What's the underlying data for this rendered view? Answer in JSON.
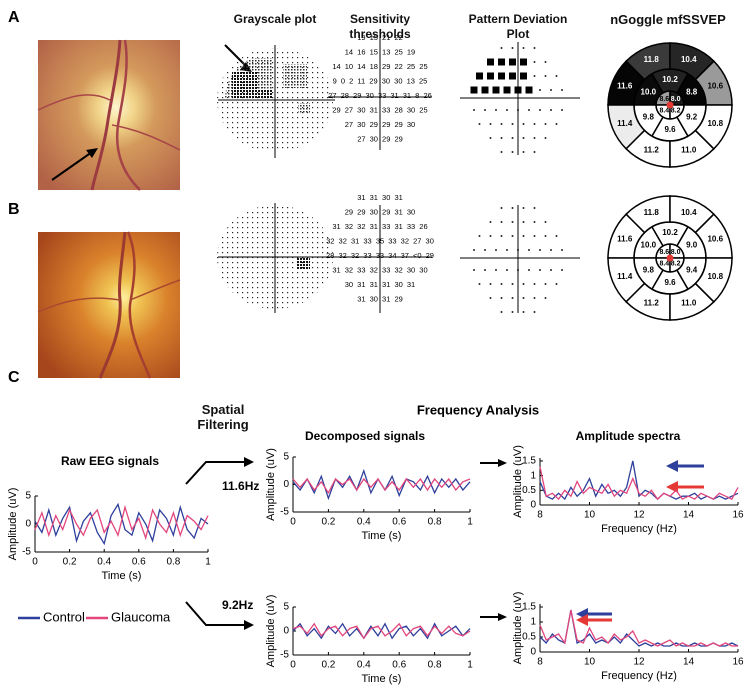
{
  "panels": [
    "A",
    "B",
    "C"
  ],
  "headers": [
    "Grayscale plot",
    "Sensitivity thresholds",
    "Pattern Deviation Plot",
    "nGoggle mfSSVEP"
  ],
  "thresholds": [
    [
      "19 15 21 22",
      "14 16 15 13 25 19",
      "14 10 14 18 29 22 25 25",
      "9 0 2 11 29 30 30 13 25",
      "27 28 29 30 33 31 31 8 26",
      "29 27 30 31 33 28 30 25",
      "27 30 29 29 29 30",
      "27 30 29 29"
    ],
    [
      "31 31 30 31",
      "29 29 30 29 31 30",
      "31 32 32 31 33 31 33 26",
      "32 32 31 33 35 33 32 27 30",
      "28 32 32 33 33 34 37 <0 29",
      "31 32 33 32 33 32 30 30",
      "30 31 31 31 30 31",
      "31 30 31 29"
    ]
  ],
  "mfssvep": [
    {
      "inner": {
        "labels": [
          "8.6",
          "8.0",
          "8.4",
          "8.2"
        ],
        "colors": [
          "#a0a0a0",
          "#1a1a1a",
          "#ffffff",
          "#ffffff"
        ]
      },
      "middle": {
        "labels": [
          "10.0",
          "10.2",
          "8.8",
          "9.8",
          "9.6",
          "9.2"
        ],
        "colors": [
          "#0a0a0a",
          "#222222",
          "#050505",
          "#ffffff",
          "#ffffff",
          "#ffffff"
        ]
      },
      "outer": {
        "labels": [
          "11.6",
          "11.8",
          "10.4",
          "10.6",
          "11.4",
          "11.2",
          "11.0",
          "10.8"
        ],
        "colors": [
          "#050505",
          "#3a3a3a",
          "#262626",
          "#9a9a9a",
          "#ececec",
          "#ffffff",
          "#ffffff",
          "#ffffff"
        ]
      }
    },
    {
      "inner": {
        "labels": [
          "8.6",
          "8.0",
          "8.4",
          "8.2"
        ],
        "colors": [
          "#ffffff",
          "#ffffff",
          "#ffffff",
          "#ffffff"
        ]
      },
      "middle": {
        "labels": [
          "10.0",
          "10.2",
          "9.0",
          "9.8",
          "9.6",
          "9.4"
        ],
        "colors": [
          "#ffffff",
          "#ffffff",
          "#ffffff",
          "#ffffff",
          "#ffffff",
          "#ffffff"
        ]
      },
      "outer": {
        "labels": [
          "11.6",
          "11.8",
          "10.4",
          "10.6",
          "11.4",
          "11.2",
          "11.0",
          "10.8"
        ],
        "colors": [
          "#ffffff",
          "#ffffff",
          "#ffffff",
          "#ffffff",
          "#ffffff",
          "#ffffff",
          "#ffffff",
          "#ffffff"
        ]
      }
    }
  ],
  "pipeline": {
    "spatial_filtering": "Spatial Filtering",
    "frequency_analysis": "Frequency Analysis",
    "bands": [
      "11.6Hz",
      "9.2Hz"
    ]
  },
  "chart_data": [
    {
      "type": "line",
      "title": "Raw EEG signals",
      "xlabel": "Time (s)",
      "ylabel": "Amplitude (uV)",
      "xlim": [
        0,
        1
      ],
      "ylim": [
        -5,
        5
      ],
      "xticks": [
        0,
        0.2,
        0.4,
        0.6,
        0.8,
        1
      ],
      "yticks": [
        -5,
        0,
        5
      ],
      "x": [
        0,
        0.04,
        0.08,
        0.12,
        0.16,
        0.2,
        0.24,
        0.28,
        0.32,
        0.36,
        0.4,
        0.44,
        0.48,
        0.52,
        0.56,
        0.6,
        0.64,
        0.68,
        0.72,
        0.76,
        0.8,
        0.84,
        0.88,
        0.92,
        0.96,
        1
      ],
      "series": [
        {
          "name": "Control",
          "color": "#2e3f9c",
          "values": [
            0.5,
            -1.5,
            2.5,
            -2,
            1,
            3,
            -3,
            0.5,
            2,
            -1.5,
            -3.5,
            1.5,
            3.5,
            -1,
            -2,
            2,
            0,
            -3,
            2.5,
            1,
            -2,
            3,
            -1,
            -2.5,
            1,
            0
          ]
        },
        {
          "name": "Glaucoma",
          "color": "#e2467d",
          "values": [
            -1,
            2,
            -2,
            1.5,
            -1,
            2.5,
            0,
            -2,
            1,
            2.5,
            -1.5,
            0.5,
            -2,
            3,
            -1,
            1,
            -2.5,
            2.5,
            0,
            -1.5,
            2,
            -2,
            1.5,
            0.5,
            -1,
            1.5
          ]
        }
      ]
    },
    {
      "type": "line",
      "title": "Decomposed signals",
      "xlabel": "Time (s)",
      "ylabel": "Amplitude (uV)",
      "xlim": [
        0,
        1
      ],
      "ylim": [
        -5,
        5
      ],
      "xticks": [
        0,
        0.2,
        0.4,
        0.6,
        0.8,
        1
      ],
      "yticks": [
        -5,
        0,
        5
      ],
      "x": [
        0,
        0.04,
        0.08,
        0.12,
        0.16,
        0.2,
        0.24,
        0.28,
        0.32,
        0.36,
        0.4,
        0.44,
        0.48,
        0.52,
        0.56,
        0.6,
        0.64,
        0.68,
        0.72,
        0.76,
        0.8,
        0.84,
        0.88,
        0.92,
        0.96,
        1
      ],
      "series": [
        {
          "color": "#2e3f9c",
          "values": [
            0.5,
            -1,
            1,
            -1.5,
            1.5,
            -2.5,
            1,
            -0.5,
            1.5,
            -1,
            2.5,
            -1.5,
            1,
            -1,
            1.5,
            -2,
            1,
            0.5,
            -1,
            1.5,
            -1.5,
            1,
            -0.5,
            1,
            -1,
            0.5
          ]
        },
        {
          "color": "#e2467d",
          "values": [
            1,
            -0.5,
            1,
            -1,
            0.5,
            -1.5,
            1,
            0,
            1,
            -1,
            1,
            -0.5,
            1,
            -1,
            0.5,
            -1,
            1,
            -0.5,
            1,
            -1,
            1,
            -0.5,
            1,
            -1,
            0.5,
            1
          ]
        }
      ]
    },
    {
      "type": "line",
      "title": "Amplitude spectra",
      "xlabel": "Frequency (Hz)",
      "ylabel": "Amplitude (uV)",
      "xlim": [
        8,
        16
      ],
      "ylim": [
        0,
        1.6
      ],
      "xticks": [
        8,
        10,
        12,
        14,
        16
      ],
      "yticks": [
        0,
        0.5,
        1,
        1.5
      ],
      "x": [
        8,
        8.25,
        8.5,
        8.75,
        9,
        9.25,
        9.5,
        9.75,
        10,
        10.25,
        10.5,
        10.75,
        11,
        11.25,
        11.5,
        11.75,
        12,
        12.25,
        12.5,
        12.75,
        13,
        13.25,
        13.5,
        13.75,
        14,
        14.25,
        14.5,
        14.75,
        15,
        15.25,
        15.5,
        15.75,
        16
      ],
      "series": [
        {
          "color": "#2e3f9c",
          "values": [
            0.8,
            0.3,
            0.2,
            0.4,
            0.2,
            0.6,
            0.3,
            0.5,
            0.9,
            0.3,
            0.7,
            0.4,
            0.5,
            0.3,
            0.6,
            1.5,
            0.3,
            0.5,
            0.4,
            0.2,
            0.4,
            0.3,
            0.2,
            0.3,
            0.3,
            0.4,
            0.2,
            0.3,
            0.2,
            0.3,
            0.2,
            0.3,
            0.4
          ]
        },
        {
          "color": "#e2467d",
          "values": [
            1.3,
            0.3,
            0.4,
            0.2,
            0.5,
            0.3,
            0.8,
            0.4,
            0.6,
            0.5,
            0.4,
            0.7,
            0.3,
            0.5,
            0.4,
            0.9,
            0.4,
            0.3,
            0.5,
            0.2,
            0.4,
            0.3,
            0.5,
            0.2,
            0.3,
            0.2,
            0.4,
            0.3,
            0.2,
            0.4,
            0.3,
            0.2,
            0.6
          ]
        }
      ]
    },
    {
      "type": "line",
      "xlabel": "Time (s)",
      "ylabel": "Amplitude (uV)",
      "xlim": [
        0,
        1
      ],
      "ylim": [
        -5,
        5
      ],
      "xticks": [
        0,
        0.2,
        0.4,
        0.6,
        0.8,
        1
      ],
      "yticks": [
        -5,
        0,
        5
      ],
      "x": [
        0,
        0.04,
        0.08,
        0.12,
        0.16,
        0.2,
        0.24,
        0.28,
        0.32,
        0.36,
        0.4,
        0.44,
        0.48,
        0.52,
        0.56,
        0.6,
        0.64,
        0.68,
        0.72,
        0.76,
        0.8,
        0.84,
        0.88,
        0.92,
        0.96,
        1
      ],
      "series": [
        {
          "color": "#2e3f9c",
          "values": [
            0,
            1.5,
            -1,
            0.5,
            -1.5,
            1,
            -0.5,
            1.5,
            -1,
            0.5,
            -1.5,
            1,
            -1,
            1.5,
            -1.5,
            0.5,
            1,
            -1,
            0.5,
            -1.5,
            1.5,
            -1,
            0,
            1,
            -1,
            0.5
          ]
        },
        {
          "color": "#e2467d",
          "values": [
            0.5,
            1,
            -0.5,
            1.5,
            -1,
            0.5,
            1,
            -1,
            0.5,
            1,
            -1.5,
            0.5,
            1,
            -1,
            0,
            1.5,
            -1,
            0.5,
            1,
            -1,
            1,
            -0.5,
            1,
            -0.5,
            -1,
            0
          ]
        }
      ]
    },
    {
      "type": "line",
      "xlabel": "Frequency (Hz)",
      "ylabel": "Amplitude (uV)",
      "xlim": [
        8,
        16
      ],
      "ylim": [
        0,
        1.6
      ],
      "xticks": [
        8,
        10,
        12,
        14,
        16
      ],
      "yticks": [
        0,
        0.5,
        1,
        1.5
      ],
      "x": [
        8,
        8.25,
        8.5,
        8.75,
        9,
        9.25,
        9.5,
        9.75,
        10,
        10.25,
        10.5,
        10.75,
        11,
        11.25,
        11.5,
        11.75,
        12,
        12.25,
        12.5,
        12.75,
        13,
        13.25,
        13.5,
        13.75,
        14,
        14.25,
        14.5,
        14.75,
        15,
        15.25,
        15.5,
        15.75,
        16
      ],
      "series": [
        {
          "color": "#2e3f9c",
          "values": [
            0.5,
            0.3,
            0.6,
            0.4,
            0.3,
            1.4,
            0.3,
            0.4,
            0.6,
            0.3,
            0.4,
            0.3,
            0.5,
            0.3,
            0.6,
            0.4,
            0.2,
            0.3,
            0.2,
            0.3,
            0.2,
            0.2,
            0.3,
            0.2,
            0.2,
            0.3,
            0.2,
            0.2,
            0.3,
            0.2,
            0.2,
            0.3,
            0.2
          ]
        },
        {
          "color": "#e2467d",
          "values": [
            0.9,
            0.4,
            0.5,
            0.6,
            0.3,
            1.4,
            0.4,
            0.3,
            0.8,
            0.4,
            0.5,
            0.3,
            0.6,
            0.4,
            0.5,
            0.7,
            0.3,
            0.4,
            0.3,
            0.2,
            0.3,
            0.4,
            0.2,
            0.3,
            0.2,
            0.2,
            0.3,
            0.2,
            0.3,
            0.2,
            0.3,
            0.2,
            0.2
          ]
        }
      ]
    }
  ]
}
